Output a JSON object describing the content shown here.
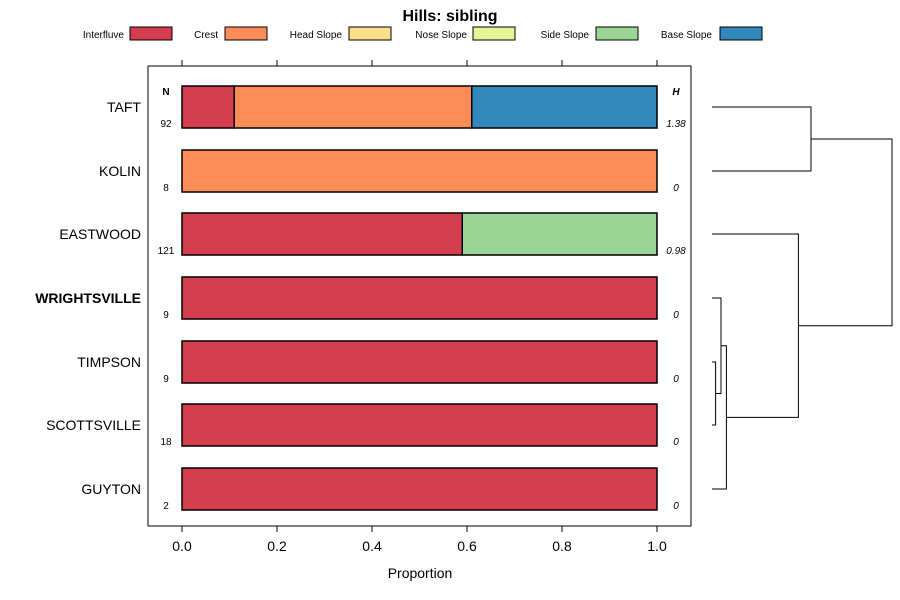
{
  "chart_data": {
    "type": "bar",
    "orientation": "horizontal",
    "stacked": true,
    "title": "Hills: sibling",
    "xlabel": "Proportion",
    "ylabel": "",
    "xlim": [
      0,
      1
    ],
    "xticks": [
      0.0,
      0.2,
      0.4,
      0.6,
      0.8,
      1.0
    ],
    "xtick_labels": [
      "0.0",
      "0.2",
      "0.4",
      "0.6",
      "0.8",
      "1.0"
    ],
    "n_header": "N",
    "h_header": "H",
    "legend_position": "top",
    "legend": [
      {
        "name": "Interfluve",
        "color": "#d53e4f"
      },
      {
        "name": "Crest",
        "color": "#fc8d59"
      },
      {
        "name": "Head Slope",
        "color": "#fee08b"
      },
      {
        "name": "Nose Slope",
        "color": "#e6f598"
      },
      {
        "name": "Side Slope",
        "color": "#99d594"
      },
      {
        "name": "Base Slope",
        "color": "#3288bd"
      }
    ],
    "categories": [
      "TAFT",
      "KOLIN",
      "EASTWOOD",
      "WRIGHTSVILLE",
      "TIMPSON",
      "SCOTTSVILLE",
      "GUYTON"
    ],
    "highlighted": "WRIGHTSVILLE",
    "n": [
      "92",
      "8",
      "121",
      "9",
      "9",
      "18",
      "2"
    ],
    "h": [
      "1.38",
      "0",
      "0.98",
      "0",
      "0",
      "0",
      "0"
    ],
    "series": [
      {
        "name": "Interfluve",
        "values": [
          0.11,
          0,
          0.59,
          1,
          1,
          1,
          1
        ]
      },
      {
        "name": "Crest",
        "values": [
          0.5,
          1,
          0,
          0,
          0,
          0,
          0
        ]
      },
      {
        "name": "Head Slope",
        "values": [
          0,
          0,
          0,
          0,
          0,
          0,
          0
        ]
      },
      {
        "name": "Nose Slope",
        "values": [
          0,
          0,
          0,
          0,
          0,
          0,
          0
        ]
      },
      {
        "name": "Side Slope",
        "values": [
          0,
          0,
          0.41,
          0,
          0,
          0,
          0
        ]
      },
      {
        "name": "Base Slope",
        "values": [
          0.39,
          0,
          0,
          0,
          0,
          0,
          0
        ]
      }
    ],
    "dendrogram": {
      "merges": [
        {
          "a": "TAFT",
          "b": "KOLIN",
          "height": 0.55
        },
        {
          "a": "TIMPSON",
          "b": "SCOTTSVILLE",
          "height": 0.02
        },
        {
          "a": "WRIGHTSVILLE",
          "b": "TIMPSON+SCOTTSVILLE",
          "height": 0.05
        },
        {
          "a": "WRIGHTSVILLE+TIMPSON+SCOTTSVILLE",
          "b": "GUYTON",
          "height": 0.08
        },
        {
          "a": "EASTWOOD",
          "b": "WRIGHTSVILLE+TIMPSON+SCOTTSVILLE+GUYTON",
          "height": 0.48
        },
        {
          "a": "TAFT+KOLIN",
          "b": "EASTWOOD+WRIGHTSVILLE+TIMPSON+SCOTTSVILLE+GUYTON",
          "height": 1.0
        }
      ]
    }
  }
}
